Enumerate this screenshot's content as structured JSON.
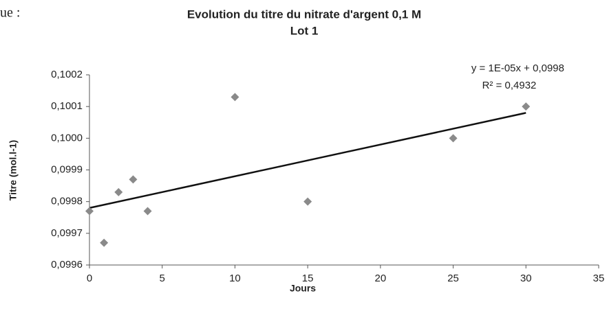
{
  "fragment": "ue :",
  "chart_data": {
    "type": "scatter",
    "title": "Evolution du titre du nitrate d'argent 0,1 M",
    "subtitle": "Lot 1",
    "x_label": "Jours",
    "y_label": "Titre (mol.l-1)",
    "x": [
      0,
      1,
      2,
      3,
      4,
      10,
      15,
      25,
      30
    ],
    "values": [
      0.09977,
      0.09967,
      0.09983,
      0.09987,
      0.09977,
      0.10013,
      0.0998,
      0.1,
      0.1001
    ],
    "color": "#8a8a8a",
    "trendline": {
      "x": [
        0,
        30
      ],
      "values": [
        0.09978,
        0.10008
      ],
      "color": "#111111"
    },
    "annotations": [
      "y = 1E-05x + 0,0998",
      "R² = 0,4932"
    ],
    "xlim": [
      0,
      35
    ],
    "xticks": [
      0,
      5,
      10,
      15,
      20,
      25,
      30,
      35
    ],
    "ylim": [
      0.0996,
      0.1002
    ],
    "yticks": [
      {
        "value": 0.0996,
        "label": "0,0996"
      },
      {
        "value": 0.0997,
        "label": "0,0997"
      },
      {
        "value": 0.0998,
        "label": "0,0998"
      },
      {
        "value": 0.0999,
        "label": "0,0999"
      },
      {
        "value": 0.1,
        "label": "0,1000"
      },
      {
        "value": 0.1001,
        "label": "0,1001"
      },
      {
        "value": 0.1002,
        "label": "0,1002"
      }
    ],
    "grid": false
  }
}
